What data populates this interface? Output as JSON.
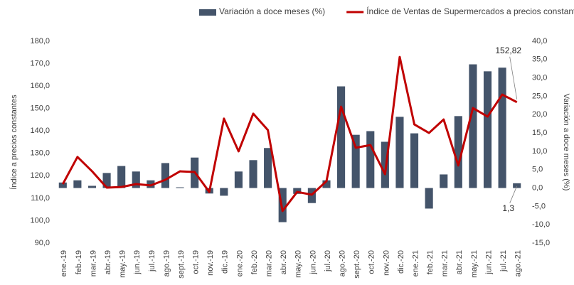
{
  "chart_data": {
    "type": "bar-line",
    "categories": [
      "ene.-19",
      "feb.-19",
      "mar.-19",
      "abr.-19",
      "may.-19",
      "jun.-19",
      "jul.-19",
      "ago.-19",
      "sept.-19",
      "oct.-19",
      "nov.-19",
      "dic.-19",
      "ene.-20",
      "feb.-20",
      "mar.-20",
      "abr.-20",
      "may.-20",
      "jun.-20",
      "jul.-20",
      "ago.-20",
      "sept.-20",
      "oct.-20",
      "nov.-20",
      "dic.-20",
      "ene.-21",
      "feb.-21",
      "mar.-21",
      "abr.-21",
      "may.-21",
      "jun.-21",
      "jul.-21",
      "ago.-21"
    ],
    "series": [
      {
        "name": "Variación a doce meses (%)",
        "type": "bar",
        "axis": "y2",
        "color": "#44546a",
        "values": [
          1.5,
          2.1,
          0.6,
          4.1,
          6.0,
          4.5,
          2.1,
          6.8,
          0.2,
          8.3,
          -1.5,
          -2.1,
          4.5,
          7.6,
          10.9,
          -9.3,
          -1.6,
          -4.1,
          2.1,
          27.7,
          14.5,
          15.5,
          12.6,
          19.4,
          14.9,
          -5.6,
          3.7,
          19.6,
          33.7,
          31.8,
          32.8,
          1.3
        ],
        "value_labels": [
          null,
          null,
          null,
          null,
          null,
          null,
          null,
          null,
          null,
          null,
          null,
          null,
          null,
          null,
          null,
          null,
          null,
          null,
          null,
          null,
          null,
          null,
          null,
          null,
          null,
          null,
          null,
          null,
          null,
          null,
          null,
          "1,3"
        ]
      },
      {
        "name": "Índice de Ventas de Supermercados a precios constantes",
        "type": "line",
        "axis": "y",
        "color": "#c00000",
        "values": [
          116.3,
          128.4,
          122.0,
          114.7,
          115.0,
          116.3,
          115.7,
          118.2,
          122.0,
          121.7,
          112.8,
          145.5,
          130.9,
          147.7,
          140.4,
          104.3,
          112.8,
          111.6,
          117.6,
          150.8,
          132.5,
          133.7,
          120.7,
          173.0,
          142.9,
          139.1,
          145.1,
          124.6,
          150.2,
          146.4,
          156.2,
          152.82
        ],
        "value_labels": [
          null,
          null,
          null,
          null,
          null,
          null,
          null,
          null,
          null,
          null,
          null,
          null,
          null,
          null,
          null,
          null,
          null,
          null,
          null,
          null,
          null,
          null,
          null,
          null,
          null,
          null,
          null,
          null,
          null,
          null,
          null,
          "152,82"
        ]
      }
    ],
    "ylabel": "Índice a precios constantes",
    "y2label": "Variación a doce meses (%)",
    "ylim": [
      90,
      180
    ],
    "yticks": [
      {
        "value": 90,
        "label": "90,0"
      },
      {
        "value": 100,
        "label": "100,0"
      },
      {
        "value": 110,
        "label": "110,0"
      },
      {
        "value": 120,
        "label": "120,0"
      },
      {
        "value": 130,
        "label": "130,0"
      },
      {
        "value": 140,
        "label": "140,0"
      },
      {
        "value": 150,
        "label": "150,0"
      },
      {
        "value": 160,
        "label": "160,0"
      },
      {
        "value": 170,
        "label": "170,0"
      },
      {
        "value": 180,
        "label": "180,0"
      }
    ],
    "y2lim": [
      -15,
      40
    ],
    "y2ticks": [
      {
        "value": -15,
        "label": "-15,0"
      },
      {
        "value": -10,
        "label": "-10,0"
      },
      {
        "value": -5,
        "label": "-5,0"
      },
      {
        "value": 0,
        "label": "0,0"
      },
      {
        "value": 5,
        "label": "5,0"
      },
      {
        "value": 10,
        "label": "10,0"
      },
      {
        "value": 15,
        "label": "15,0"
      },
      {
        "value": 20,
        "label": "20,0"
      },
      {
        "value": 25,
        "label": "25,0"
      },
      {
        "value": 30,
        "label": "30,0"
      },
      {
        "value": 35,
        "label": "35,0"
      },
      {
        "value": 40,
        "label": "40,0"
      }
    ],
    "legend": "top"
  }
}
